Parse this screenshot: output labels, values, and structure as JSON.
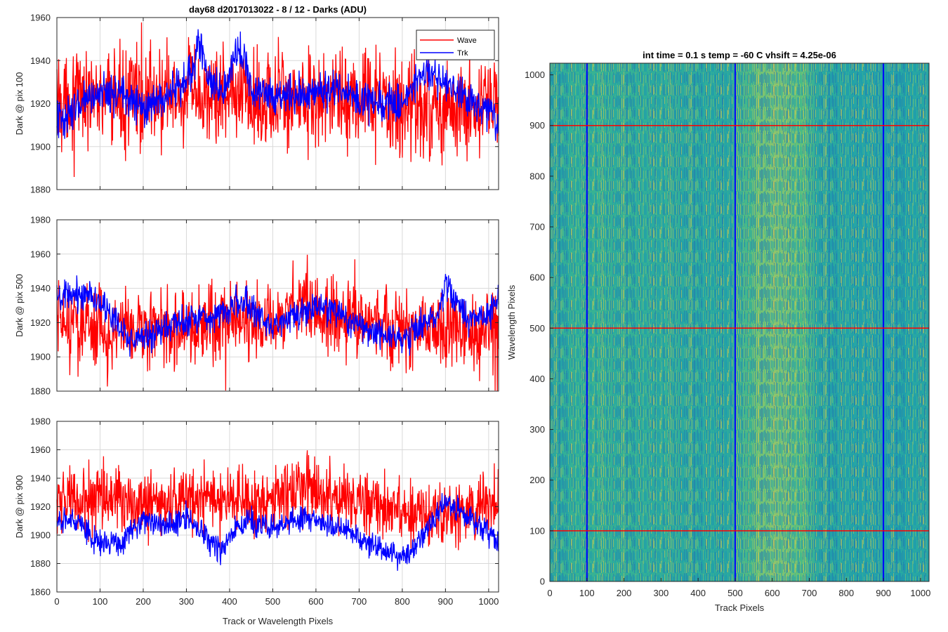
{
  "figure_title": "day68 d2017013022 - 8 / 12 - Darks (ADU)",
  "xlabel_left": "Track or Wavelength Pixels",
  "colors": {
    "wave": "#ff0000",
    "trk": "#0000ff",
    "grid": "#d9d9d9",
    "axis": "#262626"
  },
  "legend": {
    "wave": "Wave",
    "trk": "Trk"
  },
  "chart_data": [
    {
      "type": "line",
      "ylabel": "Dark @ pix 100",
      "xlim": [
        0,
        1023
      ],
      "ylim": [
        1880,
        1960
      ],
      "xticks": [
        0,
        100,
        200,
        300,
        400,
        500,
        600,
        700,
        800,
        900,
        1000
      ],
      "yticks": [
        1880,
        1900,
        1920,
        1940,
        1960
      ],
      "grid": true,
      "legend": "top-right",
      "series": [
        {
          "name": "Wave",
          "color": "#ff0000",
          "points": 1024,
          "baseline": 1922,
          "waypoints": [
            [
              0,
              1922
            ],
            [
              100,
              1924
            ],
            [
              200,
              1922
            ],
            [
              300,
              1923
            ],
            [
              400,
              1924
            ],
            [
              500,
              1922
            ],
            [
              600,
              1923
            ],
            [
              700,
              1921
            ],
            [
              800,
              1919
            ],
            [
              900,
              1918
            ],
            [
              1023,
              1918
            ]
          ]
        },
        {
          "name": "Trk",
          "color": "#0000ff",
          "points": 1024,
          "waypoints": [
            [
              0,
              1912
            ],
            [
              50,
              1918
            ],
            [
              100,
              1926
            ],
            [
              150,
              1925
            ],
            [
              200,
              1917
            ],
            [
              250,
              1922
            ],
            [
              300,
              1930
            ],
            [
              330,
              1948
            ],
            [
              350,
              1932
            ],
            [
              380,
              1925
            ],
            [
              420,
              1946
            ],
            [
              450,
              1928
            ],
            [
              500,
              1924
            ],
            [
              550,
              1924
            ],
            [
              600,
              1925
            ],
            [
              650,
              1928
            ],
            [
              700,
              1922
            ],
            [
              750,
              1920
            ],
            [
              800,
              1920
            ],
            [
              850,
              1935
            ],
            [
              900,
              1928
            ],
            [
              950,
              1922
            ],
            [
              1000,
              1918
            ],
            [
              1023,
              1908
            ]
          ]
        }
      ]
    },
    {
      "type": "line",
      "ylabel": "Dark @ pix 500",
      "xlim": [
        0,
        1023
      ],
      "ylim": [
        1880,
        1980
      ],
      "xticks": [
        0,
        100,
        200,
        300,
        400,
        500,
        600,
        700,
        800,
        900,
        1000
      ],
      "yticks": [
        1880,
        1900,
        1920,
        1940,
        1960,
        1980
      ],
      "grid": true,
      "series": [
        {
          "name": "Wave",
          "color": "#ff0000",
          "points": 1024,
          "waypoints": [
            [
              0,
              1920
            ],
            [
              100,
              1916
            ],
            [
              200,
              1918
            ],
            [
              300,
              1916
            ],
            [
              400,
              1918
            ],
            [
              500,
              1920
            ],
            [
              560,
              1930
            ],
            [
              600,
              1926
            ],
            [
              700,
              1922
            ],
            [
              800,
              1916
            ],
            [
              900,
              1914
            ],
            [
              1023,
              1916
            ]
          ]
        },
        {
          "name": "Trk",
          "color": "#0000ff",
          "points": 1024,
          "waypoints": [
            [
              0,
              1933
            ],
            [
              80,
              1938
            ],
            [
              120,
              1925
            ],
            [
              170,
              1910
            ],
            [
              250,
              1916
            ],
            [
              300,
              1922
            ],
            [
              380,
              1925
            ],
            [
              420,
              1933
            ],
            [
              450,
              1928
            ],
            [
              500,
              1918
            ],
            [
              560,
              1924
            ],
            [
              600,
              1928
            ],
            [
              650,
              1926
            ],
            [
              700,
              1918
            ],
            [
              800,
              1910
            ],
            [
              880,
              1925
            ],
            [
              900,
              1942
            ],
            [
              950,
              1922
            ],
            [
              1000,
              1925
            ],
            [
              1023,
              1932
            ]
          ]
        }
      ]
    },
    {
      "type": "line",
      "ylabel": "Dark @ pix 900",
      "xlabel": "Track or Wavelength Pixels",
      "xlim": [
        0,
        1023
      ],
      "ylim": [
        1860,
        1980
      ],
      "xticks": [
        0,
        100,
        200,
        300,
        400,
        500,
        600,
        700,
        800,
        900,
        1000
      ],
      "yticks": [
        1860,
        1880,
        1900,
        1920,
        1940,
        1960,
        1980
      ],
      "grid": true,
      "series": [
        {
          "name": "Wave",
          "color": "#ff0000",
          "points": 1024,
          "waypoints": [
            [
              0,
              1922
            ],
            [
              100,
              1928
            ],
            [
              200,
              1922
            ],
            [
              300,
              1925
            ],
            [
              400,
              1926
            ],
            [
              500,
              1924
            ],
            [
              570,
              1935
            ],
            [
              600,
              1928
            ],
            [
              700,
              1924
            ],
            [
              800,
              1916
            ],
            [
              900,
              1915
            ],
            [
              1023,
              1922
            ]
          ]
        },
        {
          "name": "Trk",
          "color": "#0000ff",
          "points": 1024,
          "waypoints": [
            [
              0,
              1908
            ],
            [
              50,
              1912
            ],
            [
              80,
              1896
            ],
            [
              150,
              1895
            ],
            [
              200,
              1912
            ],
            [
              250,
              1905
            ],
            [
              300,
              1912
            ],
            [
              330,
              1905
            ],
            [
              380,
              1888
            ],
            [
              430,
              1910
            ],
            [
              500,
              1905
            ],
            [
              560,
              1912
            ],
            [
              600,
              1910
            ],
            [
              650,
              1905
            ],
            [
              700,
              1898
            ],
            [
              800,
              1884
            ],
            [
              850,
              1900
            ],
            [
              900,
              1923
            ],
            [
              950,
              1914
            ],
            [
              1023,
              1895
            ]
          ]
        }
      ]
    },
    {
      "type": "heatmap",
      "title": "int time = 0.1 s   temp = -60 C   vhsift = 4.25e-06",
      "xlabel": "Track Pixels",
      "ylabel": "Wavelength Pixels",
      "xlim": [
        0,
        1023
      ],
      "ylim": [
        0,
        1023
      ],
      "xticks": [
        0,
        100,
        200,
        300,
        400,
        500,
        600,
        700,
        800,
        900,
        1000
      ],
      "yticks": [
        0,
        100,
        200,
        300,
        400,
        500,
        600,
        700,
        800,
        900,
        1000
      ],
      "colormap": [
        "#1f6fb4",
        "#1c9bb0",
        "#2fb596",
        "#8ec46c",
        "#d4c64c"
      ],
      "vertical_lines": {
        "x": [
          100,
          500,
          900
        ],
        "color": "#0000ff"
      },
      "horizontal_lines": {
        "y": [
          100,
          500,
          900
        ],
        "color": "#ff0000"
      },
      "bright_band_x": [
        540,
        680
      ]
    }
  ]
}
